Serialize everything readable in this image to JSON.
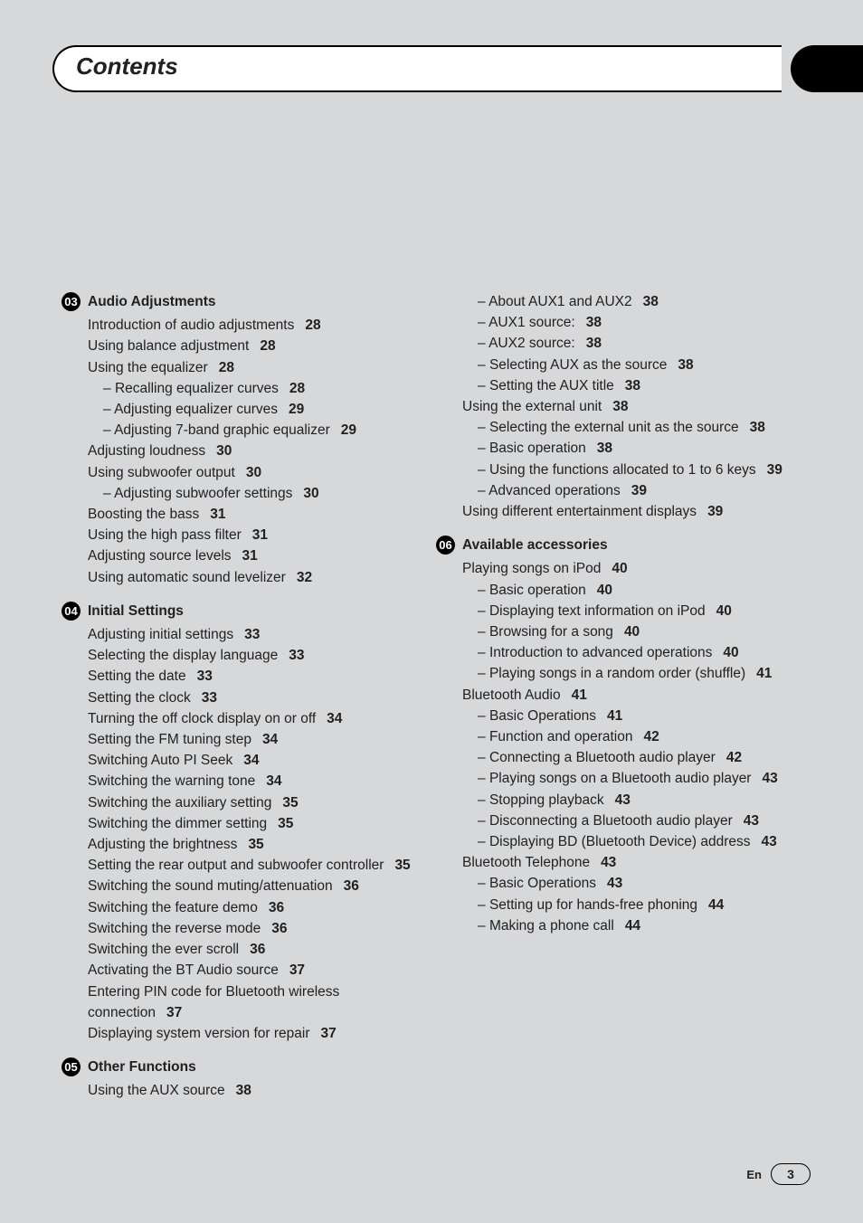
{
  "header": {
    "title": "Contents"
  },
  "footer": {
    "lang": "En",
    "page": "3"
  },
  "left_sections": [
    {
      "num": "03",
      "title": "Audio Adjustments",
      "items": [
        {
          "t": "Introduction of audio adjustments",
          "p": "28"
        },
        {
          "t": "Using balance adjustment",
          "p": "28"
        },
        {
          "t": "Using the equalizer",
          "p": "28",
          "subs": [
            {
              "t": "Recalling equalizer curves",
              "p": "28"
            },
            {
              "t": "Adjusting equalizer curves",
              "p": "29"
            },
            {
              "t": "Adjusting 7-band graphic equalizer",
              "p": "29"
            }
          ]
        },
        {
          "t": "Adjusting loudness",
          "p": "30"
        },
        {
          "t": "Using subwoofer output",
          "p": "30",
          "subs": [
            {
              "t": "Adjusting subwoofer settings",
              "p": "30"
            }
          ]
        },
        {
          "t": "Boosting the bass",
          "p": "31"
        },
        {
          "t": "Using the high pass filter",
          "p": "31"
        },
        {
          "t": "Adjusting source levels",
          "p": "31"
        },
        {
          "t": "Using automatic sound levelizer",
          "p": "32"
        }
      ]
    },
    {
      "num": "04",
      "title": "Initial Settings",
      "items": [
        {
          "t": "Adjusting initial settings",
          "p": "33"
        },
        {
          "t": "Selecting the display language",
          "p": "33"
        },
        {
          "t": "Setting the date",
          "p": "33"
        },
        {
          "t": "Setting the clock",
          "p": "33"
        },
        {
          "t": "Turning the off clock display on or off",
          "p": "34"
        },
        {
          "t": "Setting the FM tuning step",
          "p": "34"
        },
        {
          "t": "Switching Auto PI Seek",
          "p": "34"
        },
        {
          "t": "Switching the warning tone",
          "p": "34"
        },
        {
          "t": "Switching the auxiliary setting",
          "p": "35"
        },
        {
          "t": "Switching the dimmer setting",
          "p": "35"
        },
        {
          "t": "Adjusting the brightness",
          "p": "35"
        },
        {
          "t": "Setting the rear output and subwoofer controller",
          "p": "35"
        },
        {
          "t": "Switching the sound muting/attenuation",
          "p": "36"
        },
        {
          "t": "Switching the feature demo",
          "p": "36"
        },
        {
          "t": "Switching the reverse mode",
          "p": "36"
        },
        {
          "t": "Switching the ever scroll",
          "p": "36"
        },
        {
          "t": "Activating the BT Audio source",
          "p": "37"
        },
        {
          "t": "Entering PIN code for Bluetooth wireless connection",
          "p": "37"
        },
        {
          "t": "Displaying system version for repair",
          "p": "37"
        }
      ]
    },
    {
      "num": "05",
      "title": "Other Functions",
      "items": [
        {
          "t": "Using the AUX source",
          "p": "38"
        }
      ]
    }
  ],
  "right_sections": [
    {
      "num": "",
      "title": "",
      "items": [
        {
          "t": "",
          "p": "",
          "subs": [
            {
              "t": "About AUX1 and AUX2",
              "p": "38"
            },
            {
              "t": "AUX1 source:",
              "p": "38"
            },
            {
              "t": "AUX2 source:",
              "p": "38"
            },
            {
              "t": "Selecting AUX as the source",
              "p": "38"
            },
            {
              "t": "Setting the AUX title",
              "p": "38"
            }
          ]
        },
        {
          "t": "Using the external unit",
          "p": "38",
          "subs": [
            {
              "t": "Selecting the external unit as the source",
              "p": "38"
            },
            {
              "t": "Basic operation",
              "p": "38"
            },
            {
              "t": "Using the functions allocated to 1 to 6 keys",
              "p": "39"
            },
            {
              "t": "Advanced operations",
              "p": "39"
            }
          ]
        },
        {
          "t": "Using different entertainment displays",
          "p": "39"
        }
      ]
    },
    {
      "num": "06",
      "title": "Available accessories",
      "items": [
        {
          "t": "Playing songs on iPod",
          "p": "40",
          "subs": [
            {
              "t": "Basic operation",
              "p": "40"
            },
            {
              "t": "Displaying text information on iPod",
              "p": "40"
            },
            {
              "t": "Browsing for a song",
              "p": "40"
            },
            {
              "t": "Introduction to advanced operations",
              "p": "40"
            },
            {
              "t": "Playing songs in a random order (shuffle)",
              "p": "41"
            }
          ]
        },
        {
          "t": "Bluetooth Audio",
          "p": "41",
          "subs": [
            {
              "t": "Basic Operations",
              "p": "41"
            },
            {
              "t": "Function and operation",
              "p": "42"
            },
            {
              "t": "Connecting a Bluetooth audio player",
              "p": "42"
            },
            {
              "t": "Playing songs on a Bluetooth audio player",
              "p": "43"
            },
            {
              "t": "Stopping playback",
              "p": "43"
            },
            {
              "t": "Disconnecting a Bluetooth audio player",
              "p": "43"
            },
            {
              "t": "Displaying BD (Bluetooth Device) address",
              "p": "43"
            }
          ]
        },
        {
          "t": "Bluetooth Telephone",
          "p": "43",
          "subs": [
            {
              "t": "Basic Operations",
              "p": "43"
            },
            {
              "t": "Setting up for hands-free phoning",
              "p": "44"
            },
            {
              "t": "Making a phone call",
              "p": "44"
            }
          ]
        }
      ]
    }
  ]
}
